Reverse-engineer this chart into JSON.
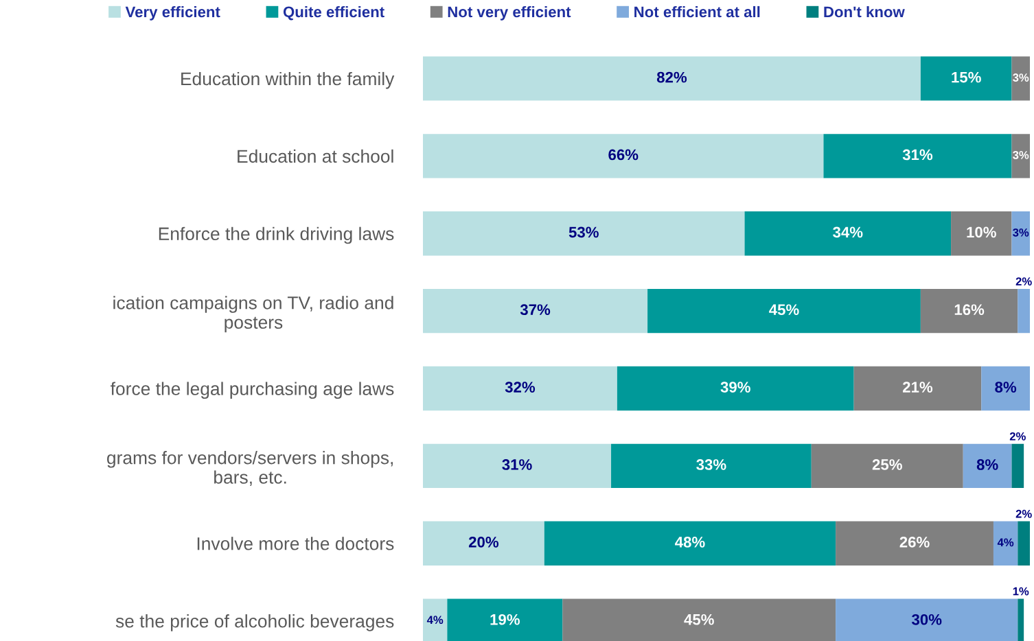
{
  "chart_data": {
    "type": "bar",
    "orientation": "horizontal",
    "stacked": true,
    "legend": "top",
    "grid": false,
    "tick_labels": "y",
    "categories": [
      "Education within the family",
      "Education at school",
      "Enforce the drink driving laws",
      "ication campaigns on TV, radio and\nposters",
      "force the legal purchasing age laws",
      "grams for vendors/servers in shops,\nbars, etc.",
      "Involve more the doctors",
      "se the price of alcoholic beverages"
    ],
    "series": [
      {
        "name": "Very efficient",
        "color": "#b9e0e2",
        "values": [
          82,
          66,
          53,
          37,
          32,
          31,
          20,
          4
        ],
        "value_labels": [
          "82%",
          "66%",
          "53%",
          "37%",
          "32%",
          "31%",
          "20%",
          "4%"
        ]
      },
      {
        "name": "Quite efficient",
        "color": "#009999",
        "values": [
          15,
          31,
          34,
          45,
          39,
          33,
          48,
          19
        ],
        "value_labels": [
          "15%",
          "31%",
          "34%",
          "45%",
          "39%",
          "33%",
          "48%",
          "19%"
        ]
      },
      {
        "name": "Not very efficient",
        "color": "#808080",
        "values": [
          3,
          3,
          10,
          16,
          21,
          25,
          26,
          45
        ],
        "value_labels": [
          "3%",
          "3%",
          "10%",
          "16%",
          "21%",
          "25%",
          "26%",
          "45%"
        ]
      },
      {
        "name": "Not efficient at all",
        "color": "#7faadc",
        "values": [
          null,
          null,
          3,
          2,
          8,
          8,
          4,
          30
        ],
        "value_labels": [
          null,
          null,
          "3%",
          "2%",
          "8%",
          "8%",
          "4%",
          "30%"
        ]
      },
      {
        "name": "Don't know",
        "color": "#007f7f",
        "values": [
          null,
          null,
          null,
          null,
          null,
          2,
          2,
          1
        ],
        "value_labels": [
          null,
          null,
          null,
          null,
          null,
          "2%",
          "2%",
          "1%"
        ]
      }
    ]
  }
}
